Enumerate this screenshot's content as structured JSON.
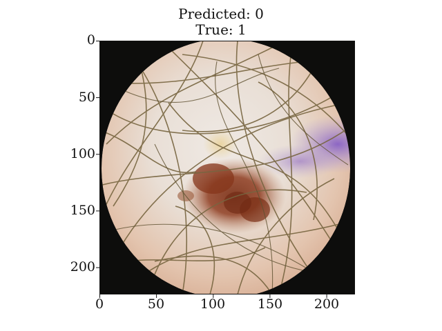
{
  "title": {
    "predicted": "Predicted: 0",
    "true": "True: 1"
  },
  "image": {
    "subject": "dermoscopy image of a pigmented skin lesion with hairs",
    "colors": {
      "background": "#0d0d0c",
      "skin_center": "#eae3dc",
      "skin_lower": "#e0b8a0",
      "lesion": "#8a3a1c",
      "purple_stain": "#9a78c8",
      "hair": "#7a6a44"
    }
  },
  "axes": {
    "x_ticks": [
      "0",
      "50",
      "100",
      "150",
      "200"
    ],
    "y_ticks": [
      "0",
      "50",
      "100",
      "150",
      "200"
    ],
    "extent": [
      0,
      224
    ]
  }
}
